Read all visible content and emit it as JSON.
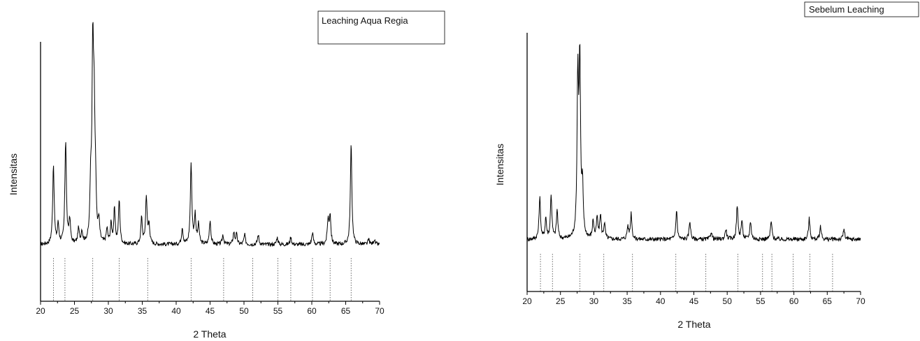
{
  "chart_data": [
    {
      "type": "line",
      "title": "",
      "xlabel": "2 Theta",
      "ylabel": "Intensitas",
      "xlim": [
        20,
        70
      ],
      "xticks": [
        20,
        25,
        30,
        35,
        40,
        45,
        50,
        55,
        60,
        65,
        70
      ],
      "y_ticks_shown": false,
      "legend": {
        "text": "Leaching Aqua Regia",
        "placement": "top-right"
      },
      "grid": false,
      "series": [
        {
          "name": "Leaching Aqua Regia",
          "color": "#000000",
          "baseline": 5,
          "peaks": [
            [
              21.9,
              33
            ],
            [
              22.6,
              8
            ],
            [
              23.7,
              43
            ],
            [
              24.3,
              10
            ],
            [
              25.6,
              6
            ],
            [
              26.1,
              5
            ],
            [
              27.4,
              22
            ],
            [
              27.7,
              76
            ],
            [
              27.9,
              46
            ],
            [
              28.1,
              18
            ],
            [
              28.6,
              8
            ],
            [
              29.8,
              6
            ],
            [
              30.4,
              8
            ],
            [
              30.9,
              14
            ],
            [
              31.6,
              18
            ],
            [
              34.9,
              11
            ],
            [
              35.6,
              20
            ],
            [
              36.0,
              8
            ],
            [
              40.9,
              7
            ],
            [
              42.2,
              34
            ],
            [
              42.8,
              12
            ],
            [
              43.3,
              8
            ],
            [
              45.0,
              10
            ],
            [
              46.9,
              4
            ],
            [
              48.5,
              5
            ],
            [
              48.9,
              4
            ],
            [
              50.1,
              4
            ],
            [
              52.1,
              4
            ],
            [
              54.9,
              3
            ],
            [
              56.9,
              3
            ],
            [
              60.1,
              5
            ],
            [
              62.4,
              10
            ],
            [
              62.7,
              12
            ],
            [
              65.8,
              42
            ],
            [
              68.4,
              2
            ],
            [
              69.2,
              2
            ]
          ]
        }
      ],
      "reference_lines": [
        21.9,
        23.6,
        27.7,
        31.6,
        35.8,
        42.2,
        47.0,
        51.3,
        55.0,
        56.9,
        60.1,
        62.7,
        65.8
      ]
    },
    {
      "type": "line",
      "title": "",
      "xlabel": "2 Theta",
      "ylabel": "Intensitas",
      "xlim": [
        20,
        70
      ],
      "xticks": [
        20,
        25,
        30,
        35,
        40,
        45,
        50,
        55,
        60,
        65,
        70
      ],
      "y_ticks_shown": false,
      "legend": {
        "text": "Sebelum Leaching",
        "placement": "top-right"
      },
      "grid": false,
      "series": [
        {
          "name": "Sebelum Leaching",
          "color": "#000000",
          "baseline": 5,
          "peaks": [
            [
              21.9,
              16
            ],
            [
              22.8,
              8
            ],
            [
              23.6,
              17
            ],
            [
              24.5,
              11
            ],
            [
              27.6,
              60
            ],
            [
              27.9,
              66
            ],
            [
              28.3,
              18
            ],
            [
              29.9,
              7
            ],
            [
              30.5,
              8
            ],
            [
              31.0,
              9
            ],
            [
              31.6,
              6
            ],
            [
              35.1,
              5
            ],
            [
              35.6,
              10
            ],
            [
              42.4,
              11
            ],
            [
              44.4,
              7
            ],
            [
              47.6,
              3
            ],
            [
              49.8,
              4
            ],
            [
              51.5,
              13
            ],
            [
              52.2,
              7
            ],
            [
              53.5,
              7
            ],
            [
              56.6,
              7
            ],
            [
              62.3,
              8
            ],
            [
              64.0,
              5
            ],
            [
              67.5,
              4
            ]
          ]
        }
      ],
      "reference_lines": [
        22.0,
        23.8,
        27.9,
        31.5,
        35.8,
        42.3,
        46.8,
        51.6,
        55.3,
        56.7,
        59.9,
        62.4,
        65.8
      ]
    }
  ]
}
